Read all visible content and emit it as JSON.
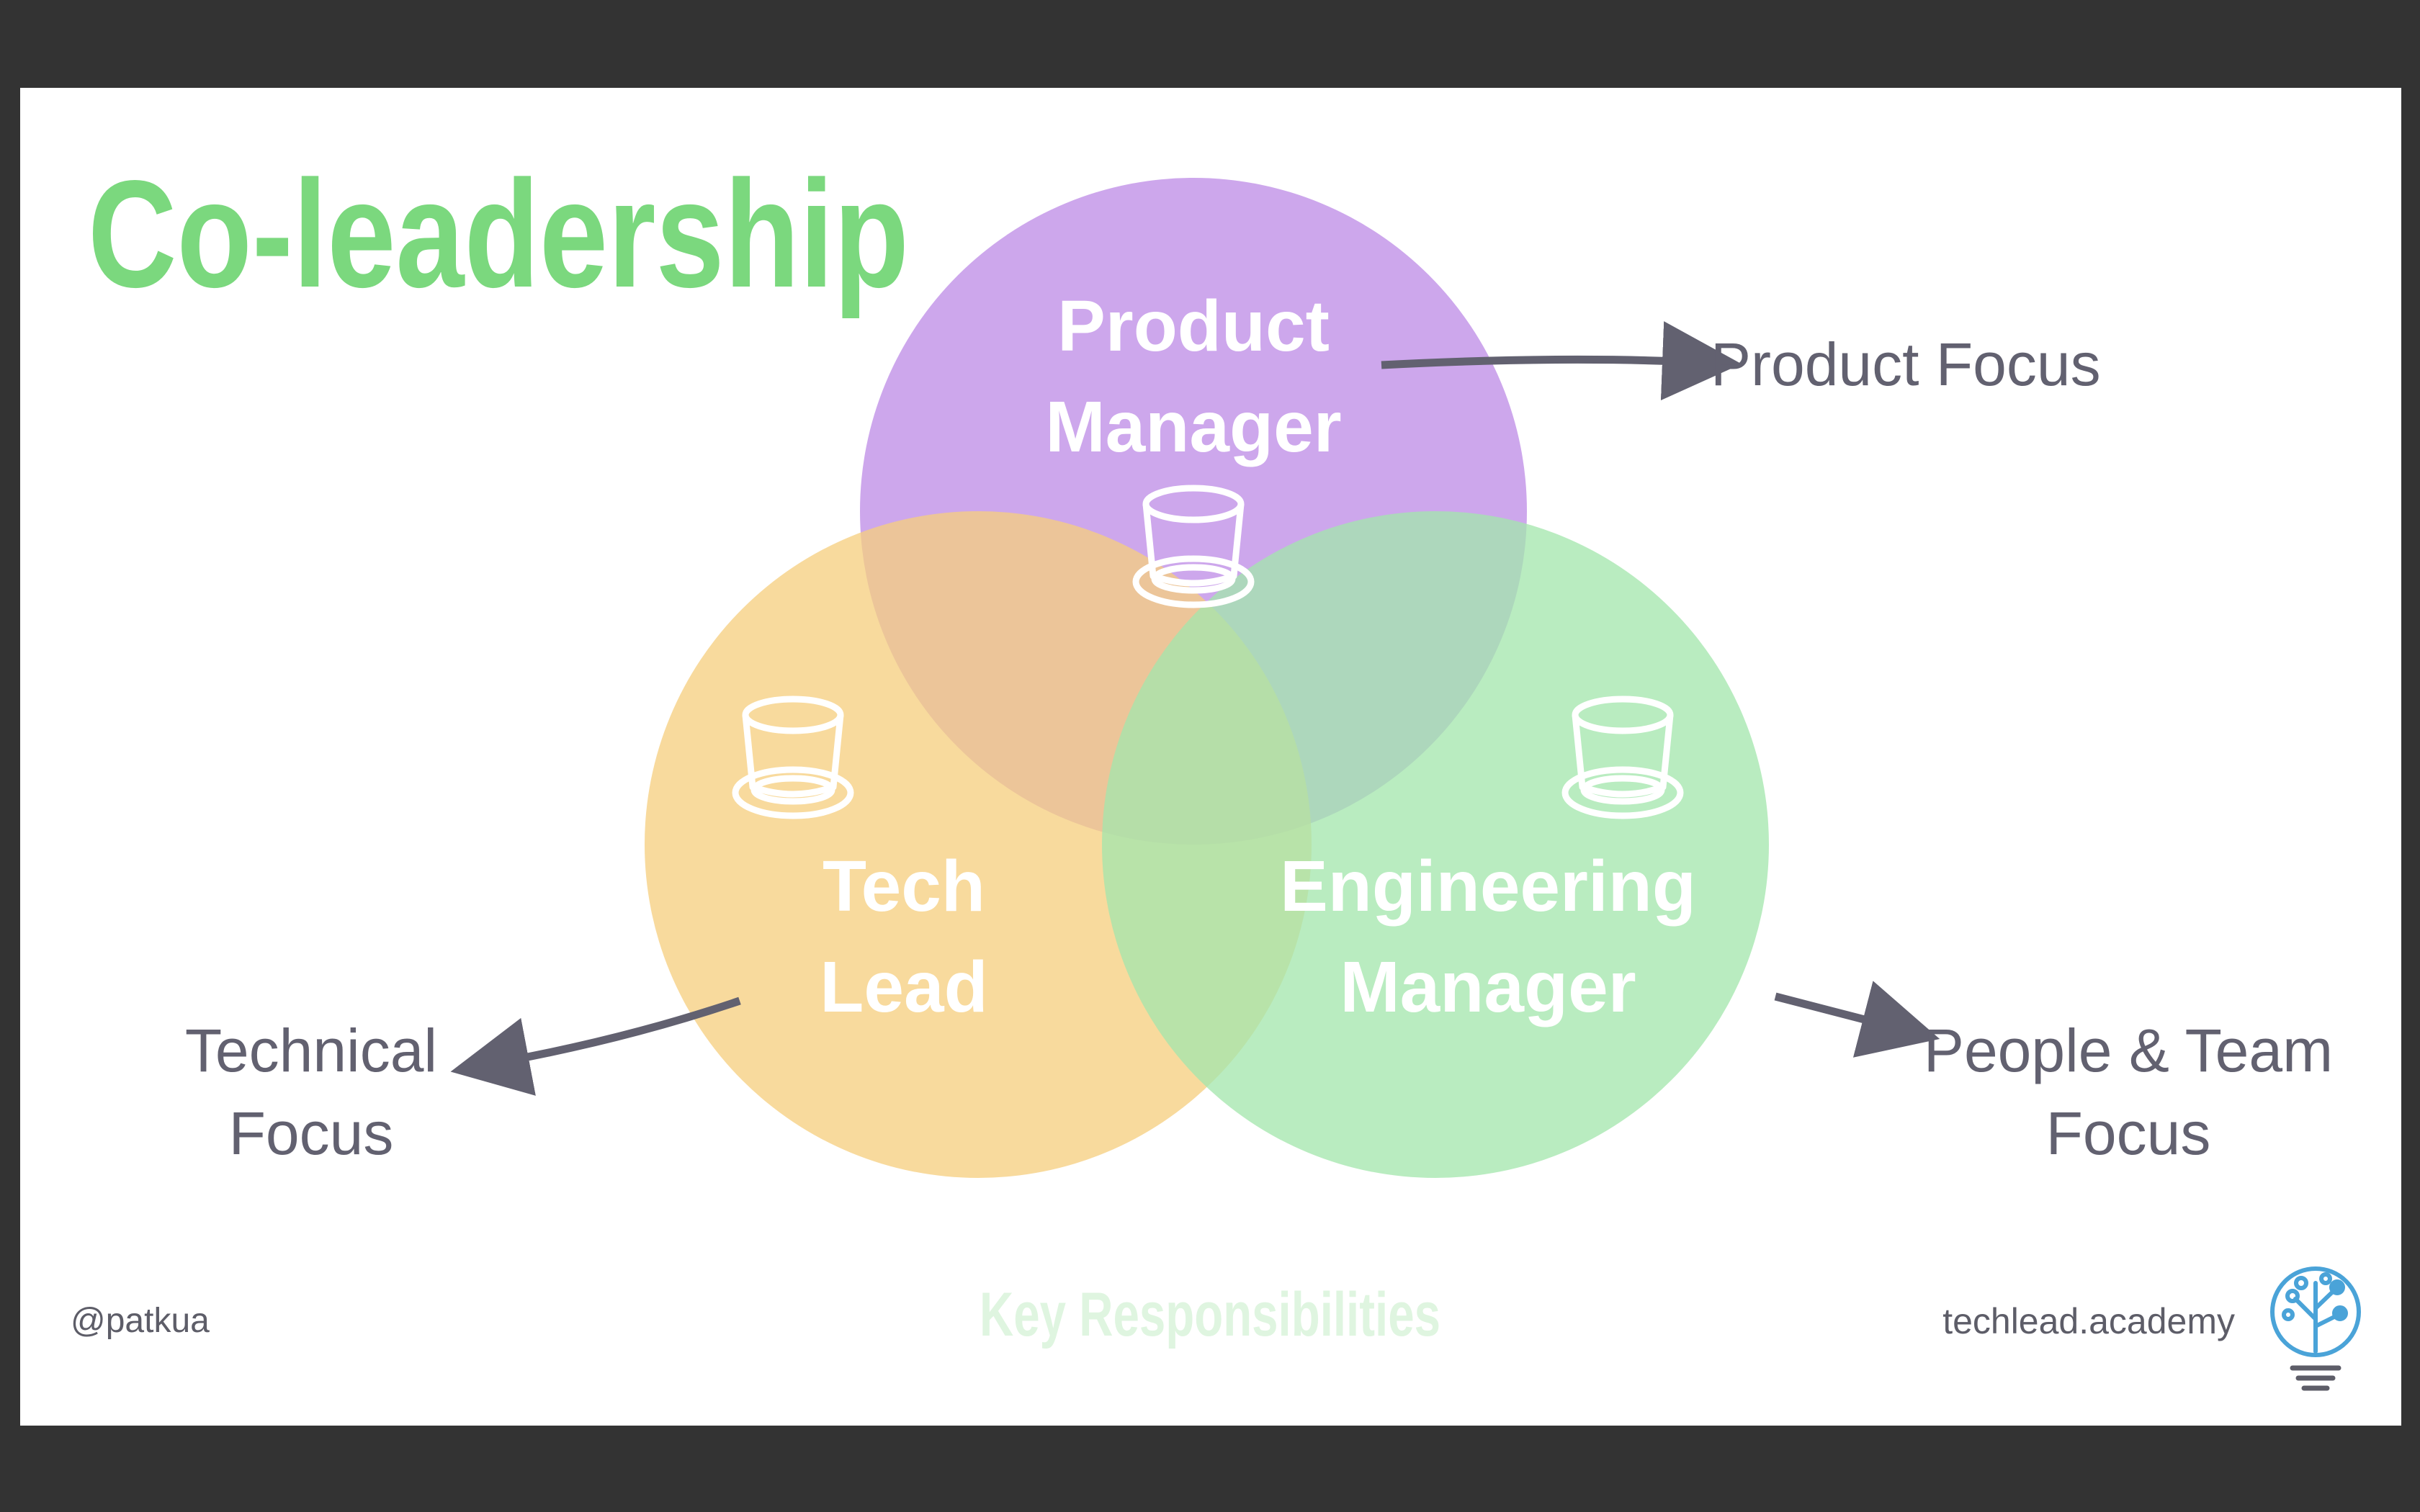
{
  "slide": {
    "title": "Co-leadership",
    "subtitle": "Key Responsibilities",
    "handle": "@patkua",
    "site": "techlead.academy"
  },
  "roles": [
    {
      "line1": "Product",
      "line2": "Manager",
      "focus": [
        "Product Focus"
      ],
      "color": "#b57ee3"
    },
    {
      "line1": "Tech",
      "line2": "Lead",
      "focus": [
        "Technical",
        "Focus"
      ],
      "color": "#f6cf7e"
    },
    {
      "line1": "Engineering",
      "line2": "Manager",
      "focus": [
        "People & Team",
        "Focus"
      ],
      "color": "#a3e6ac"
    }
  ],
  "colors": {
    "title": "#7bd87e",
    "subtitle": "#dff5e0",
    "focus_text": "#626170",
    "arrow": "#626170",
    "footer_text": "#5d5d68",
    "logo": "#4aa3d8"
  },
  "icons": [
    "hat-icon",
    "logo-tree-icon"
  ]
}
